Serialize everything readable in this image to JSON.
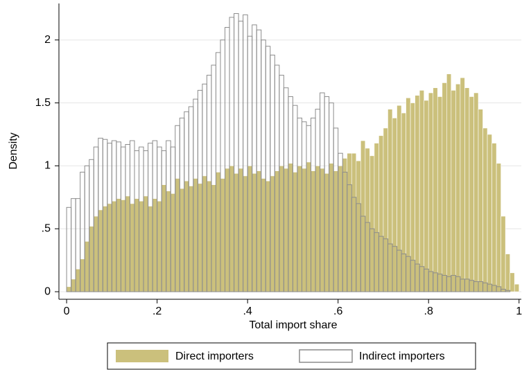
{
  "chart_data": {
    "type": "histogram",
    "xlabel": "Total import share",
    "ylabel": "Density",
    "bins": [
      0,
      0.01,
      0.02,
      0.03,
      0.04,
      0.05,
      0.06,
      0.07,
      0.08,
      0.09,
      0.1,
      0.11,
      0.12,
      0.13,
      0.14,
      0.15,
      0.16,
      0.17,
      0.18,
      0.19,
      0.2,
      0.21,
      0.22,
      0.23,
      0.24,
      0.25,
      0.26,
      0.27,
      0.28,
      0.29,
      0.3,
      0.31,
      0.32,
      0.33,
      0.34,
      0.35,
      0.36,
      0.37,
      0.38,
      0.39,
      0.4,
      0.41,
      0.42,
      0.43,
      0.44,
      0.45,
      0.46,
      0.47,
      0.48,
      0.49,
      0.5,
      0.51,
      0.52,
      0.53,
      0.54,
      0.55,
      0.56,
      0.57,
      0.58,
      0.59,
      0.6,
      0.61,
      0.62,
      0.63,
      0.64,
      0.65,
      0.66,
      0.67,
      0.68,
      0.69,
      0.7,
      0.71,
      0.72,
      0.73,
      0.74,
      0.75,
      0.76,
      0.77,
      0.78,
      0.79,
      0.8,
      0.81,
      0.82,
      0.83,
      0.84,
      0.85,
      0.86,
      0.87,
      0.88,
      0.89,
      0.9,
      0.91,
      0.92,
      0.93,
      0.94,
      0.95,
      0.96,
      0.97,
      0.98,
      0.99,
      1
    ],
    "series": [
      {
        "name": "Direct importers",
        "color": "#cbc07c",
        "fill": true,
        "values": [
          0.04,
          0.1,
          0.18,
          0.26,
          0.4,
          0.52,
          0.6,
          0.65,
          0.68,
          0.7,
          0.72,
          0.74,
          0.73,
          0.76,
          0.7,
          0.74,
          0.72,
          0.76,
          0.68,
          0.74,
          0.72,
          0.85,
          0.8,
          0.78,
          0.9,
          0.82,
          0.88,
          0.84,
          0.9,
          0.86,
          0.92,
          0.88,
          0.85,
          0.95,
          0.9,
          0.98,
          1.0,
          0.94,
          0.98,
          0.92,
          1.0,
          0.94,
          0.96,
          0.9,
          0.88,
          0.92,
          0.96,
          1.0,
          0.98,
          1.02,
          0.95,
          1.0,
          0.98,
          1.03,
          0.96,
          1.0,
          0.98,
          0.94,
          1.02,
          0.96,
          1.0,
          1.06,
          1.1,
          1.1,
          1.04,
          1.2,
          1.14,
          1.08,
          1.18,
          1.24,
          1.3,
          1.45,
          1.38,
          1.48,
          1.42,
          1.54,
          1.5,
          1.56,
          1.6,
          1.52,
          1.58,
          1.62,
          1.55,
          1.66,
          1.73,
          1.6,
          1.65,
          1.7,
          1.62,
          1.55,
          1.58,
          1.45,
          1.3,
          1.25,
          1.18,
          1.02,
          0.6,
          0.3,
          0.15,
          0.06
        ]
      },
      {
        "name": "Indirect importers",
        "color": "#8c8c8c",
        "fill": false,
        "values": [
          0.67,
          0.74,
          0.74,
          0.95,
          1.0,
          1.05,
          1.15,
          1.22,
          1.21,
          1.18,
          1.2,
          1.19,
          1.15,
          1.17,
          1.2,
          1.12,
          1.15,
          1.12,
          1.18,
          1.2,
          1.15,
          1.12,
          1.2,
          1.15,
          1.32,
          1.38,
          1.43,
          1.47,
          1.53,
          1.6,
          1.65,
          1.72,
          1.8,
          1.9,
          2.0,
          2.1,
          2.18,
          2.21,
          2.15,
          2.2,
          2.03,
          2.12,
          2.08,
          2.0,
          1.95,
          1.88,
          1.8,
          1.72,
          1.62,
          1.55,
          1.48,
          1.38,
          1.35,
          1.32,
          1.38,
          1.45,
          1.58,
          1.55,
          1.5,
          1.3,
          1.1,
          0.95,
          0.85,
          0.75,
          0.7,
          0.6,
          0.55,
          0.5,
          0.47,
          0.44,
          0.42,
          0.38,
          0.36,
          0.33,
          0.3,
          0.28,
          0.25,
          0.22,
          0.2,
          0.18,
          0.16,
          0.15,
          0.14,
          0.13,
          0.12,
          0.13,
          0.12,
          0.1,
          0.1,
          0.09,
          0.08,
          0.08,
          0.07,
          0.06,
          0.05,
          0.04,
          0.02,
          0.01,
          0.0,
          0.0
        ]
      }
    ],
    "xlim": [
      -0.017,
      1.005
    ],
    "ylim": [
      -0.06,
      2.29
    ],
    "xticks": [
      0,
      {
        "value": 0.2,
        "label": ".2"
      },
      {
        "value": 0.4,
        "label": ".4"
      },
      {
        "value": 0.6,
        "label": ".6"
      },
      {
        "value": 0.8,
        "label": ".8"
      },
      1
    ],
    "yticks": [
      0,
      {
        "value": 0.5,
        "label": ".5"
      },
      1,
      1.5,
      2
    ],
    "grid": true,
    "legend": "bottom"
  }
}
